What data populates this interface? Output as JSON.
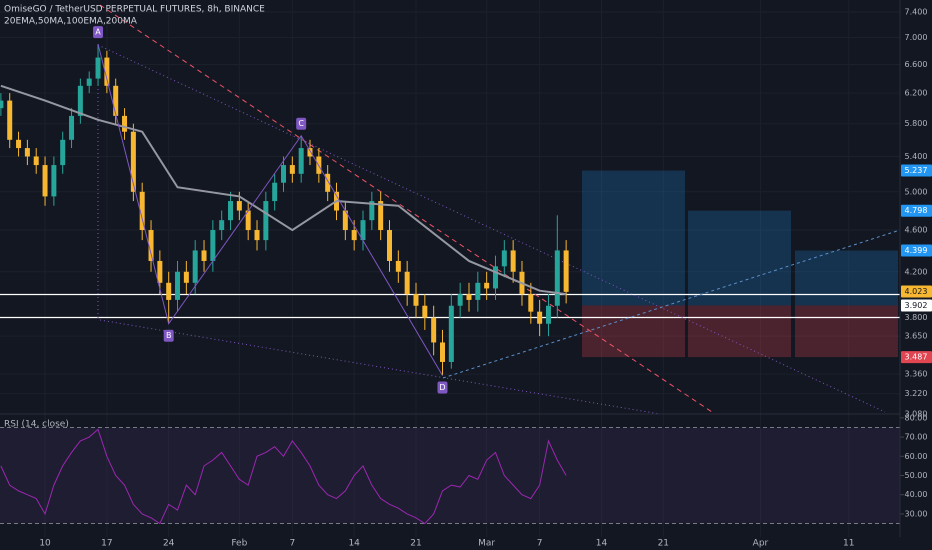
{
  "chart_data": {
    "type": "candlestick",
    "title": "OmiseGO / TetherUSD PERPETUAL FUTURES, 8h, BINANCE",
    "subtitle": "20EMA,50MA,100EMA,200MA",
    "log_scale": true,
    "up_color": "#26a69a",
    "down_color": "#f7b731",
    "x": [
      0,
      1,
      2,
      3,
      4,
      5,
      6,
      7,
      8,
      9,
      10,
      11,
      12,
      13,
      14,
      15,
      16,
      17,
      18,
      19,
      20,
      21,
      22,
      23,
      24,
      25,
      26,
      27,
      28,
      29,
      30,
      31,
      32,
      33,
      34,
      35,
      36,
      37,
      38,
      39,
      40,
      41,
      42,
      43,
      44,
      45,
      46,
      47,
      48,
      49,
      50,
      51,
      52,
      53,
      54,
      55,
      56,
      57,
      58,
      59,
      60,
      61,
      62,
      63,
      64
    ],
    "open": [
      6.0,
      6.1,
      5.6,
      5.5,
      5.4,
      5.3,
      4.95,
      5.3,
      5.6,
      5.9,
      6.3,
      6.4,
      6.7,
      6.3,
      5.9,
      5.7,
      5.0,
      4.6,
      4.3,
      4.1,
      3.95,
      4.2,
      4.1,
      4.4,
      4.3,
      4.6,
      4.7,
      4.9,
      4.8,
      4.6,
      4.5,
      4.9,
      5.1,
      5.3,
      5.2,
      5.5,
      5.4,
      5.2,
      5.0,
      4.8,
      4.6,
      4.5,
      4.7,
      4.9,
      4.6,
      4.3,
      4.2,
      4.0,
      3.9,
      3.8,
      3.6,
      3.45,
      3.9,
      4.0,
      3.95,
      4.1,
      4.05,
      4.25,
      4.4,
      4.2,
      4.0,
      3.85,
      3.75,
      3.9,
      4.4
    ],
    "high": [
      6.2,
      6.2,
      5.7,
      5.6,
      5.5,
      5.4,
      5.4,
      5.7,
      6.0,
      6.4,
      6.5,
      6.9,
      6.8,
      6.4,
      6.0,
      5.8,
      5.1,
      4.7,
      4.4,
      4.2,
      4.3,
      4.3,
      4.5,
      4.5,
      4.7,
      4.8,
      5.0,
      5.0,
      4.9,
      4.7,
      5.0,
      5.2,
      5.4,
      5.4,
      5.65,
      5.6,
      5.5,
      5.3,
      5.1,
      4.9,
      4.7,
      4.8,
      5.0,
      5.0,
      4.7,
      4.4,
      4.3,
      4.1,
      4.0,
      3.9,
      3.7,
      4.0,
      4.1,
      4.1,
      4.2,
      4.2,
      4.35,
      4.5,
      4.5,
      4.3,
      4.1,
      3.95,
      4.0,
      4.75,
      4.5
    ],
    "low": [
      5.9,
      5.5,
      5.4,
      5.3,
      5.2,
      4.85,
      4.85,
      5.2,
      5.5,
      5.8,
      6.2,
      6.3,
      6.2,
      5.8,
      5.6,
      4.9,
      4.5,
      4.2,
      4.0,
      3.75,
      3.85,
      4.0,
      4.0,
      4.2,
      4.2,
      4.5,
      4.6,
      4.7,
      4.5,
      4.4,
      4.4,
      4.8,
      5.0,
      5.1,
      5.1,
      5.3,
      5.1,
      4.9,
      4.7,
      4.5,
      4.4,
      4.4,
      4.6,
      4.5,
      4.2,
      4.1,
      3.9,
      3.8,
      3.7,
      3.5,
      3.35,
      3.4,
      3.8,
      3.85,
      3.85,
      3.95,
      3.95,
      4.15,
      4.1,
      3.9,
      3.75,
      3.65,
      3.65,
      3.8,
      3.92
    ],
    "close": [
      6.1,
      5.6,
      5.5,
      5.4,
      5.3,
      4.95,
      5.3,
      5.6,
      5.9,
      6.3,
      6.4,
      6.7,
      6.3,
      5.9,
      5.7,
      5.0,
      4.6,
      4.3,
      4.1,
      3.95,
      4.2,
      4.1,
      4.4,
      4.3,
      4.6,
      4.7,
      4.9,
      4.8,
      4.6,
      4.5,
      4.9,
      5.1,
      5.3,
      5.2,
      5.5,
      5.4,
      5.2,
      5.0,
      4.8,
      4.6,
      4.5,
      4.7,
      4.9,
      4.6,
      4.3,
      4.2,
      4.0,
      3.9,
      3.8,
      3.6,
      3.45,
      3.9,
      4.0,
      3.95,
      4.1,
      4.05,
      4.25,
      4.4,
      4.2,
      4.0,
      3.85,
      3.75,
      3.9,
      4.4,
      4.02
    ],
    "ma": {
      "color": "#9598a1",
      "x": [
        0,
        5,
        11,
        16,
        20,
        27,
        33,
        38,
        45,
        53,
        61,
        64
      ],
      "values": [
        6.3,
        6.1,
        5.85,
        5.7,
        5.05,
        4.95,
        4.6,
        4.9,
        4.85,
        4.3,
        4.03,
        4.0
      ]
    },
    "xlim": [
      -0.1,
      101.8
    ],
    "xticks": [
      {
        "value": 5,
        "label": "10"
      },
      {
        "value": 12,
        "label": "17"
      },
      {
        "value": 19,
        "label": "24"
      },
      {
        "value": 27,
        "label": "Feb"
      },
      {
        "value": 33,
        "label": "7"
      },
      {
        "value": 40,
        "label": "14"
      },
      {
        "value": 47,
        "label": "21"
      },
      {
        "value": 55,
        "label": "Mar"
      },
      {
        "value": 61,
        "label": "7"
      },
      {
        "value": 68,
        "label": "14"
      },
      {
        "value": 75,
        "label": "21"
      },
      {
        "value": 86,
        "label": "Apr"
      },
      {
        "value": 96,
        "label": "11"
      }
    ],
    "ylim": [
      3.08,
      7.4
    ],
    "yticks": [
      {
        "value": 7.4,
        "label": "7.400"
      },
      {
        "value": 7.0,
        "label": "7.000"
      },
      {
        "value": 6.6,
        "label": "6.600"
      },
      {
        "value": 6.2,
        "label": "6.200"
      },
      {
        "value": 5.8,
        "label": "5.800"
      },
      {
        "value": 5.4,
        "label": "5.400"
      },
      {
        "value": 5.0,
        "label": "5.000"
      },
      {
        "value": 4.6,
        "label": "4.600"
      },
      {
        "value": 4.2,
        "label": "4.200"
      },
      {
        "value": 3.8,
        "label": "3.800"
      },
      {
        "value": 3.65,
        "label": "3.650"
      },
      {
        "value": 3.36,
        "label": "3.360"
      },
      {
        "value": 3.22,
        "label": "3.220"
      },
      {
        "value": 3.08,
        "label": "3.080"
      }
    ],
    "price_labels": [
      {
        "value": 5.237,
        "color": "#2196f3"
      },
      {
        "value": 4.798,
        "color": "#2196f3"
      },
      {
        "value": 4.399,
        "color": "#2196f3"
      },
      {
        "value": 4.023,
        "color": "#f7b731"
      },
      {
        "value": 3.902,
        "color": "#ffffff"
      },
      {
        "value": 3.487,
        "color": "#e04552"
      }
    ],
    "pattern_labels": [
      "A",
      "B",
      "C",
      "D"
    ],
    "rsi": {
      "title": "RSI (14, close)",
      "color": "#9c27b0",
      "ylim": [
        18,
        82
      ],
      "band": [
        25,
        75
      ],
      "yticks": [
        {
          "value": 80,
          "label": "80.00"
        },
        {
          "value": 70,
          "label": "70.00"
        },
        {
          "value": 60,
          "label": "60.00"
        },
        {
          "value": 50,
          "label": "50.00"
        },
        {
          "value": 40,
          "label": "40.00"
        },
        {
          "value": 30,
          "label": "30.00"
        }
      ],
      "values": [
        55,
        45,
        42,
        40,
        38,
        30,
        45,
        55,
        62,
        68,
        70,
        74,
        60,
        50,
        45,
        35,
        30,
        28,
        25,
        35,
        32,
        45,
        40,
        55,
        58,
        62,
        55,
        48,
        45,
        60,
        62,
        65,
        60,
        68,
        62,
        55,
        45,
        40,
        38,
        42,
        50,
        55,
        45,
        38,
        35,
        33,
        30,
        28,
        25,
        30,
        42,
        45,
        44,
        50,
        48,
        58,
        62,
        50,
        45,
        40,
        38,
        45,
        68,
        58,
        50
      ]
    }
  }
}
